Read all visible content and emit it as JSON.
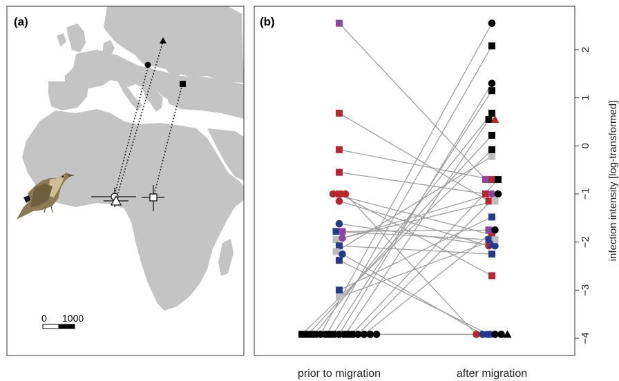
{
  "panel_a": {
    "label": "(a)",
    "scale_bar": {
      "zero": "0",
      "max": "1000"
    },
    "colors": {
      "land": "#c4c4c4",
      "sea": "#ffffff",
      "track": "#222222"
    }
  },
  "panel_b": {
    "label": "(b)"
  },
  "chart_data": {
    "type": "scatter",
    "title": "",
    "xlabel": "",
    "ylabel": "infection intensity [log-transformed]",
    "categories": [
      "prior to migration",
      "after migration"
    ],
    "yticks": [
      "2",
      "1",
      "0",
      "−1",
      "−2",
      "−3",
      "−4"
    ],
    "ylim": [
      -4.25,
      2.85
    ],
    "colors": {
      "red": "#b5282d",
      "blue": "#243a8c",
      "purple": "#8d45a4",
      "grey": "#bdbdbd",
      "black": "#000000",
      "line": "#9e9e9e"
    },
    "pairs": [
      {
        "c": "purple",
        "s": "sq",
        "a": 2.55,
        "b": -0.7
      },
      {
        "c": "red",
        "s": "sq",
        "a": 0.68,
        "b": -1.15
      },
      {
        "c": "red",
        "s": "sq",
        "a": -0.08,
        "b": -0.7
      },
      {
        "c": "red",
        "s": "sq",
        "a": -0.55,
        "b": -1.0
      },
      {
        "c": "red",
        "s": "ci",
        "a": -1.0,
        "b": -1.85
      },
      {
        "c": "red",
        "s": "ci",
        "a": -1.15,
        "b": -2.08
      },
      {
        "c": "red",
        "s": "sq",
        "a": -1.0,
        "b": -2.7
      },
      {
        "c": "red",
        "s": "ci",
        "a": -1.0,
        "b": -3.92
      },
      {
        "c": "blue",
        "s": "ci",
        "a": -1.62,
        "b": -2.08
      },
      {
        "c": "blue",
        "s": "sq",
        "a": -1.78,
        "b": -1.95
      },
      {
        "c": "purple",
        "s": "sq",
        "a": -1.78,
        "b": -1.75
      },
      {
        "c": "grey",
        "s": "sq",
        "a": -1.95,
        "b": -1.15
      },
      {
        "c": "purple",
        "s": "ci",
        "a": -1.92,
        "b": -1.0
      },
      {
        "c": "blue",
        "s": "sq",
        "a": -2.08,
        "b": -2.25
      },
      {
        "c": "grey",
        "s": "sq",
        "a": -2.2,
        "b": -0.22
      },
      {
        "c": "blue",
        "s": "ci",
        "a": -2.25,
        "b": -3.92
      },
      {
        "c": "blue",
        "s": "sq",
        "a": -2.38,
        "b": -3.92
      },
      {
        "c": "blue",
        "s": "sq",
        "a": -3.0,
        "b": -1.48
      },
      {
        "c": "grey",
        "s": "sq",
        "a": -3.15,
        "b": -1.95
      },
      {
        "c": "black",
        "s": "sq",
        "a": -3.92,
        "b": -0.08
      },
      {
        "c": "black",
        "s": "sq",
        "a": -3.92,
        "b": 0.22
      },
      {
        "c": "black",
        "s": "sq",
        "a": -3.92,
        "b": 0.68
      },
      {
        "c": "black",
        "s": "ci",
        "a": -3.92,
        "b": 2.55
      },
      {
        "c": "black",
        "s": "sq",
        "a": -3.92,
        "b": 2.08
      },
      {
        "c": "black",
        "s": "sq",
        "a": -3.92,
        "b": 1.15
      },
      {
        "c": "black",
        "s": "ci",
        "a": -3.92,
        "b": 1.3
      },
      {
        "c": "black",
        "s": "sq",
        "a": -3.92,
        "b": 0.55
      },
      {
        "c": "black",
        "s": "sq",
        "a": -3.92,
        "b": -0.7
      },
      {
        "c": "black",
        "s": "ci",
        "a": -3.92,
        "b": -1.0
      },
      {
        "c": "black",
        "s": "ci",
        "a": -3.92,
        "b": -1.75
      },
      {
        "c": "black",
        "s": "ci",
        "a": -3.92,
        "b": -3.92
      },
      {
        "c": "black",
        "s": "ci",
        "a": -3.92,
        "b": -3.92
      }
    ],
    "extra_after": [
      {
        "c": "red",
        "s": "tr",
        "b": 0.55
      },
      {
        "c": "blue",
        "s": "tr",
        "b": -2.05
      },
      {
        "c": "black",
        "s": "tr",
        "b": -3.92
      }
    ]
  }
}
